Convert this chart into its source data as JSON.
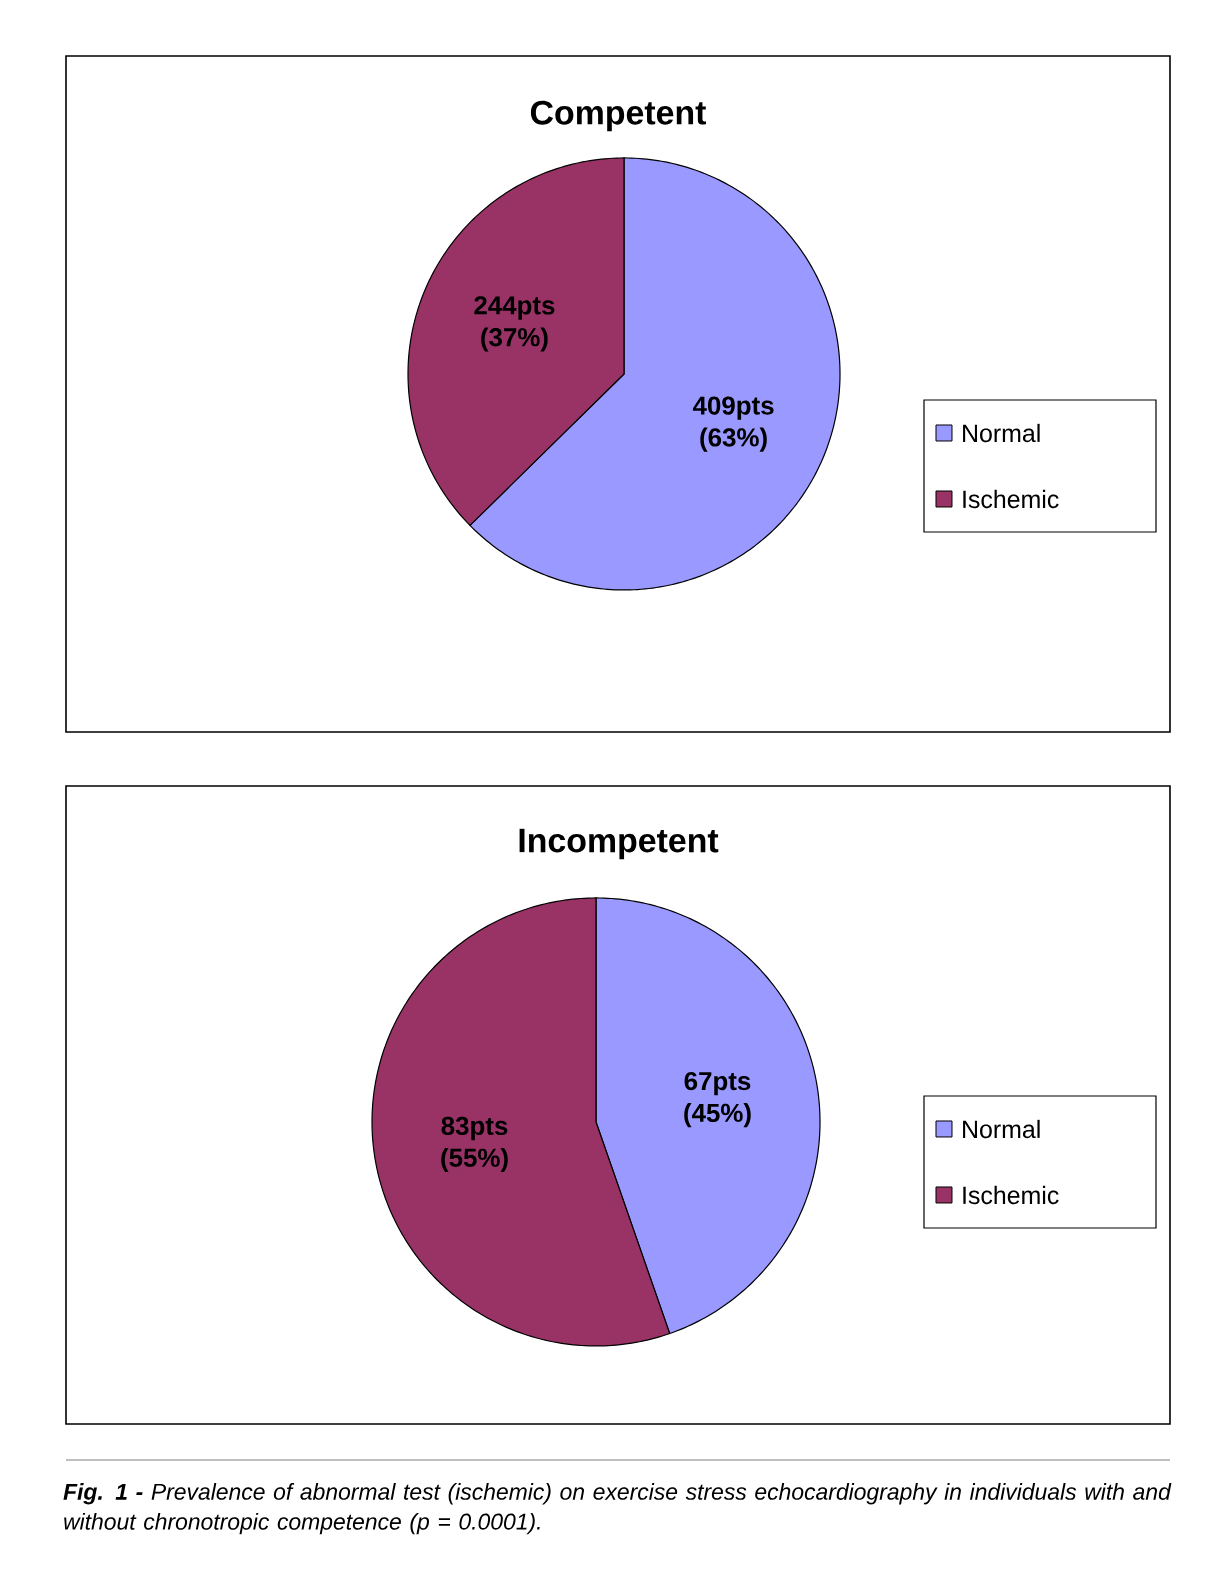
{
  "chart_data": [
    {
      "type": "pie",
      "title": "Competent",
      "categories": [
        "Normal",
        "Ischemic"
      ],
      "values": [
        409,
        244
      ],
      "colors": [
        "#9999ff",
        "#993366"
      ],
      "value_labels": [
        "409pts (63%)",
        "244pts (37%)"
      ],
      "legend": "right"
    },
    {
      "type": "pie",
      "title": "Incompetent",
      "categories": [
        "Normal",
        "Ischemic"
      ],
      "values": [
        67,
        83
      ],
      "colors": [
        "#9999ff",
        "#993366"
      ],
      "value_labels": [
        "67pts (45%)",
        "83pts (55%)"
      ],
      "legend": "right",
      "annotations": [
        "**Fig. 1 -** Prevalence of abnormal test (ischemic) on exercise stress echocardiography in individuals with and without chronotropic competence (p = 0.0001)."
      ]
    }
  ]
}
